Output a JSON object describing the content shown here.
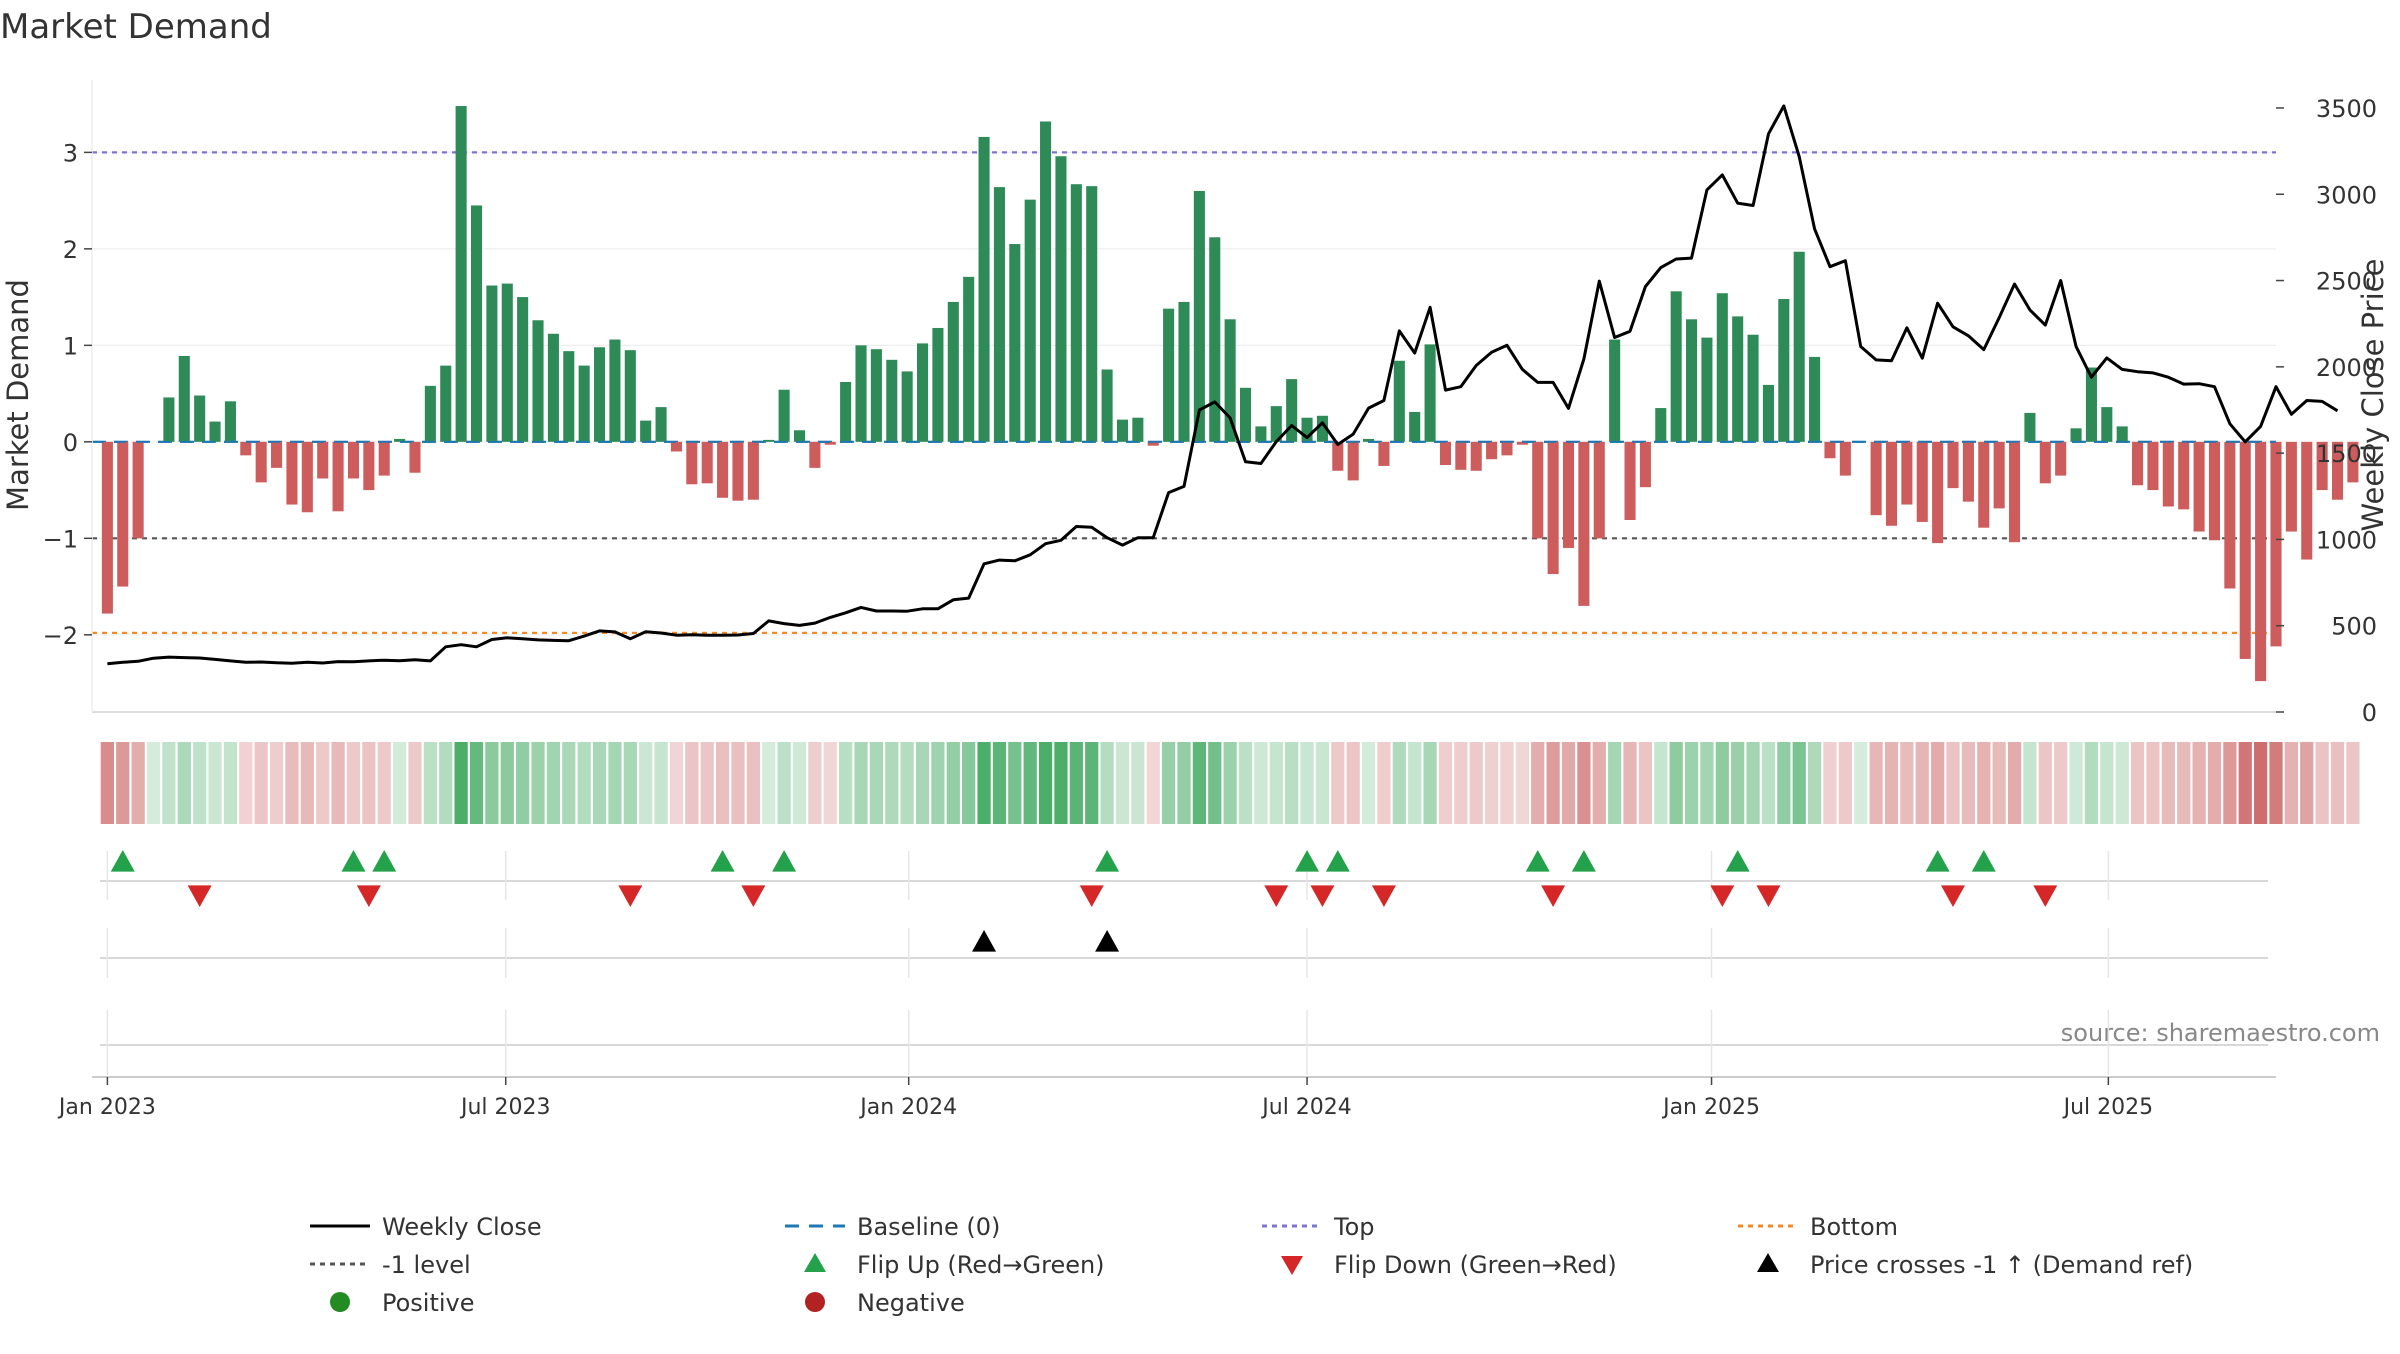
{
  "chart_data": {
    "type": "bar",
    "title": "Market Demand",
    "ylabel": "Market Demand",
    "y2label": "Weekly Close Price",
    "ylim": [
      -2.8,
      3.75
    ],
    "y2lim": [
      0,
      3662
    ],
    "yticks": [
      "3",
      "2",
      "1",
      "0",
      "−1",
      "−2"
    ],
    "yticks_values": [
      3,
      2,
      1,
      0,
      -1,
      -2
    ],
    "y2ticks": [
      "0",
      "500",
      "1000",
      "1500",
      "2000",
      "2500",
      "3000",
      "3500"
    ],
    "y2ticks_values": [
      0,
      500,
      1000,
      1500,
      2000,
      2500,
      3000,
      3500
    ],
    "x_start_week": -1,
    "x_end_week": 141,
    "xticks": [
      {
        "label": "Jan 2023",
        "week": 0
      },
      {
        "label": "Jul 2023",
        "week": 25.9
      },
      {
        "label": "Jan 2024",
        "week": 52.1
      },
      {
        "label": "Jul 2024",
        "week": 78
      },
      {
        "label": "Jan 2025",
        "week": 104.3
      },
      {
        "label": "Jul 2025",
        "week": 130.1
      }
    ],
    "reference_levels": [
      {
        "name": "Top",
        "value": 3,
        "color": "#7b75d1"
      },
      {
        "name": "-1 level",
        "value": -1,
        "color": "#555555"
      },
      {
        "name": "Bottom",
        "value": -1.98,
        "color": "#f08a24"
      },
      {
        "name": "Baseline (0)",
        "value": 0,
        "color": "#1f77b4"
      }
    ],
    "demand": [
      -1.78,
      -1.5,
      -1,
      0,
      0.46,
      0.89,
      0.48,
      0.21,
      0.42,
      -0.14,
      -0.42,
      -0.27,
      -0.65,
      -0.73,
      -0.38,
      -0.72,
      -0.38,
      -0.5,
      -0.35,
      0.03,
      -0.32,
      0.58,
      0.79,
      3.48,
      2.45,
      1.62,
      1.64,
      1.5,
      1.26,
      1.12,
      0.94,
      0.79,
      0.98,
      1.06,
      0.95,
      0.22,
      0.36,
      -0.1,
      -0.44,
      -0.43,
      -0.58,
      -0.61,
      -0.6,
      0.02,
      0.54,
      0.12,
      -0.27,
      -0.03,
      0.62,
      1,
      0.96,
      0.85,
      0.73,
      1.02,
      1.18,
      1.45,
      1.71,
      3.16,
      2.64,
      2.05,
      2.51,
      3.32,
      2.96,
      2.67,
      2.65,
      0.75,
      0.23,
      0.25,
      -0.04,
      1.38,
      1.45,
      2.6,
      2.12,
      1.27,
      0.56,
      0.16,
      0.37,
      0.65,
      0.25,
      0.27,
      -0.3,
      -0.4,
      0.03,
      -0.25,
      0.84,
      0.31,
      1.01,
      -0.24,
      -0.29,
      -0.3,
      -0.18,
      -0.14,
      -0.03,
      -1,
      -1.37,
      -1.1,
      -1.7,
      -1,
      1.06,
      -0.81,
      -0.47,
      0.35,
      1.56,
      1.27,
      1.08,
      1.54,
      1.3,
      1.11,
      0.59,
      1.48,
      1.97,
      0.88,
      -0.17,
      -0.35,
      0,
      -0.76,
      -0.87,
      -0.65,
      -0.83,
      -1.05,
      -0.48,
      -0.62,
      -0.89,
      -0.69,
      -1.04,
      0.3,
      -0.43,
      -0.35,
      0.14,
      0.77,
      0.36,
      0.16,
      -0.45,
      -0.5,
      -0.67,
      -0.7,
      -0.93,
      -1.02,
      -1.52,
      -2.25,
      -2.48,
      -2.12,
      -0.93,
      -1.22,
      -0.5,
      -0.6,
      -0.42
    ],
    "weekly_close": [
      280,
      288,
      294,
      312,
      318,
      315,
      313,
      305,
      296,
      288,
      290,
      285,
      283,
      288,
      284,
      292,
      291,
      296,
      300,
      297,
      303,
      296,
      378,
      390,
      378,
      420,
      430,
      425,
      418,
      415,
      413,
      440,
      470,
      464,
      424,
      465,
      458,
      445,
      448,
      445,
      445,
      446,
      455,
      528,
      512,
      502,
      515,
      548,
      575,
      606,
      585,
      585,
      584,
      598,
      598,
      650,
      660,
      859,
      880,
      876,
      911,
      975,
      995,
      1075,
      1070,
      1010,
      967,
      1010,
      1010,
      1271,
      1307,
      1750,
      1797,
      1704,
      1450,
      1440,
      1567,
      1660,
      1590,
      1676,
      1550,
      1610,
      1761,
      1805,
      2208,
      2080,
      2345,
      1865,
      1885,
      2008,
      2085,
      2125,
      1985,
      1910,
      1910,
      1760,
      2046,
      2497,
      2170,
      2206,
      2465,
      2575,
      2625,
      2630,
      3025,
      3112,
      2948,
      2935,
      3350,
      3512,
      3218,
      2799,
      2580,
      2615,
      2118,
      2040,
      2035,
      2226,
      2050,
      2369,
      2232,
      2180,
      2100,
      2285,
      2480,
      2330,
      2242,
      2500,
      2117,
      1940,
      2052,
      1985,
      1972,
      1965,
      1940,
      1900,
      1902,
      1885,
      1670,
      1565,
      1655,
      1885,
      1725,
      1805,
      1800,
      1745
    ],
    "heat_strip": "weekly demand intensity (green = positive, red = negative)",
    "markers": {
      "flip_up": [
        1,
        16,
        18,
        40,
        44,
        65,
        78,
        80,
        93,
        96,
        106,
        119,
        122
      ],
      "flip_down": [
        6,
        17,
        34,
        42,
        64,
        76,
        79,
        83,
        94,
        105,
        108,
        120,
        126
      ],
      "price_crosses": [
        57,
        65
      ]
    },
    "legend": [
      {
        "label": "Weekly Close",
        "kind": "line",
        "color": "#000000"
      },
      {
        "label": "Baseline (0)",
        "kind": "dash",
        "color": "#1f77b4"
      },
      {
        "label": "Top",
        "kind": "dot",
        "color": "#7b75d1"
      },
      {
        "label": "Bottom",
        "kind": "dot",
        "color": "#f08a24"
      },
      {
        "label": "-1 level",
        "kind": "dot",
        "color": "#555555"
      },
      {
        "label": "Flip Up (Red→Green)",
        "kind": "tri-up",
        "color": "#23a14b"
      },
      {
        "label": "Flip Down (Green→Red)",
        "kind": "tri-down",
        "color": "#d62728"
      },
      {
        "label": "Price crosses -1 ↑ (Demand ref)",
        "kind": "tri-up",
        "color": "#000000"
      },
      {
        "label": "Positive",
        "kind": "circle",
        "color": "#228b22"
      },
      {
        "label": "Negative",
        "kind": "circle",
        "color": "#b22222"
      }
    ],
    "source": "source: sharemaestro.com",
    "colors": {
      "positive_bar": "#2e8b57",
      "negative_bar": "#cd5c5c",
      "price_line": "#000000",
      "flip_up": "#23a14b",
      "flip_down": "#d62728",
      "cross": "#000000"
    }
  }
}
